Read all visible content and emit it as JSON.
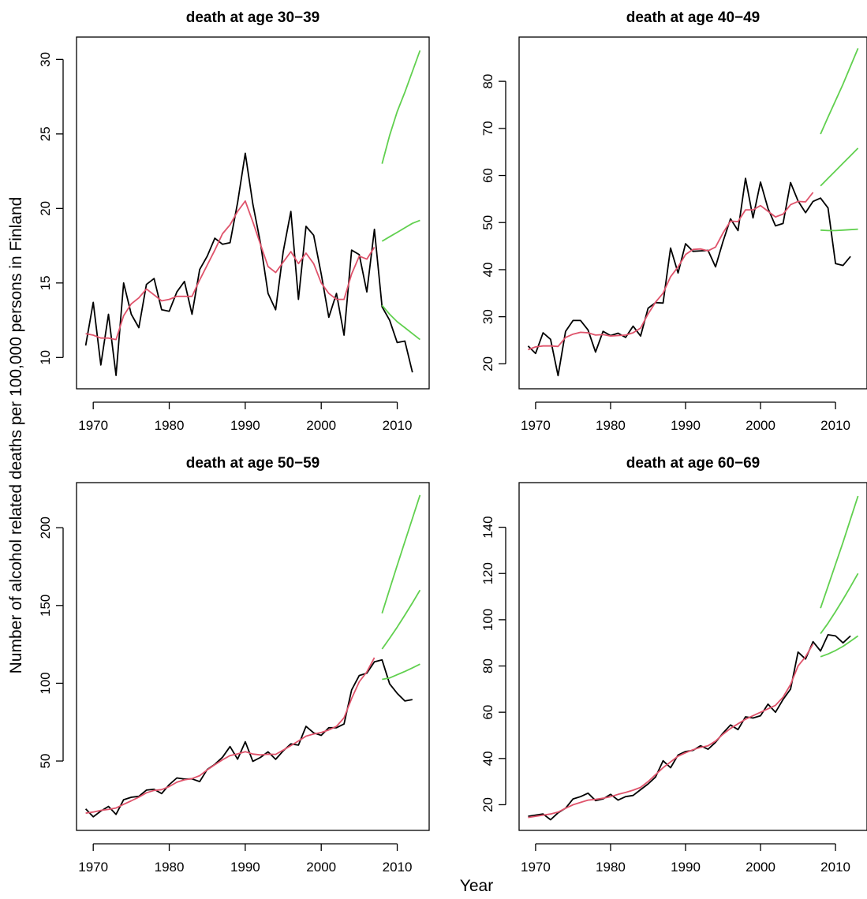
{
  "figure": {
    "ylabel": "Number of alcohol related deaths per 100,000 persons in Finland",
    "xlabel": "Year"
  },
  "colors": {
    "observed": "#000000",
    "smooth": "#DF536B",
    "forecast": "#61D04F"
  },
  "chart_data": [
    {
      "type": "line",
      "title": "death at age 30−39",
      "xlim": [
        1967.8,
        2014.2
      ],
      "ylim": [
        7.9,
        31.5
      ],
      "xticks": [
        1970,
        1980,
        1990,
        2000,
        2010
      ],
      "yticks": [
        10,
        15,
        20,
        25,
        30
      ],
      "series": [
        {
          "role": "observed",
          "x": [
            1969,
            1970,
            1971,
            1972,
            1973,
            1974,
            1975,
            1976,
            1977,
            1978,
            1979,
            1980,
            1981,
            1982,
            1983,
            1984,
            1985,
            1986,
            1987,
            1988,
            1989,
            1990,
            1991,
            1992,
            1993,
            1994,
            1995,
            1996,
            1997,
            1998,
            1999,
            2000,
            2001,
            2002,
            2003,
            2004,
            2005,
            2006,
            2007,
            2008,
            2009,
            2010,
            2011,
            2012
          ],
          "y": [
            10.8,
            13.7,
            9.5,
            12.9,
            8.8,
            15.0,
            12.9,
            12.0,
            14.9,
            15.3,
            13.2,
            13.1,
            14.4,
            15.1,
            12.9,
            15.9,
            16.8,
            18.0,
            17.6,
            17.7,
            20.4,
            23.7,
            20.3,
            17.7,
            14.3,
            13.2,
            17.1,
            19.8,
            13.9,
            18.8,
            18.2,
            15.6,
            12.7,
            14.3,
            11.5,
            17.2,
            16.9,
            14.4,
            18.6,
            13.4,
            12.5,
            11.0,
            11.1,
            9.0
          ]
        },
        {
          "role": "smooth",
          "x": [
            1969,
            1970,
            1971,
            1972,
            1973,
            1974,
            1975,
            1976,
            1977,
            1978,
            1979,
            1980,
            1981,
            1982,
            1983,
            1984,
            1985,
            1986,
            1987,
            1988,
            1989,
            1990,
            1991,
            1992,
            1993,
            1994,
            1995,
            1996,
            1997,
            1998,
            1999,
            2000,
            2001,
            2002,
            2003,
            2004,
            2005,
            2006,
            2007
          ],
          "y": [
            11.6,
            11.5,
            11.3,
            11.3,
            11.2,
            12.8,
            13.6,
            14.0,
            14.6,
            14.2,
            13.8,
            13.9,
            14.1,
            14.1,
            14.1,
            15.2,
            16.2,
            17.2,
            18.3,
            18.9,
            19.8,
            20.5,
            19.1,
            17.6,
            16.1,
            15.7,
            16.4,
            17.1,
            16.3,
            17.0,
            16.3,
            15.0,
            14.3,
            13.9,
            13.9,
            15.6,
            16.8,
            16.6,
            17.4
          ]
        },
        {
          "role": "forecast",
          "x": [
            2008,
            2009,
            2010,
            2011,
            2012,
            2013
          ],
          "y": [
            23.0,
            24.9,
            26.5,
            27.8,
            29.2,
            30.6
          ]
        },
        {
          "role": "forecast",
          "x": [
            2008,
            2009,
            2010,
            2011,
            2012,
            2013
          ],
          "y": [
            17.8,
            18.1,
            18.4,
            18.7,
            19.0,
            19.2
          ]
        },
        {
          "role": "forecast",
          "x": [
            2008,
            2009,
            2010,
            2011,
            2012,
            2013
          ],
          "y": [
            13.5,
            12.9,
            12.4,
            12.0,
            11.6,
            11.2
          ]
        }
      ]
    },
    {
      "type": "line",
      "title": "death at age 40−49",
      "xlim": [
        1967.8,
        2014.2
      ],
      "ylim": [
        14.7,
        89.4
      ],
      "xticks": [
        1970,
        1980,
        1990,
        2000,
        2010
      ],
      "yticks": [
        20,
        30,
        40,
        50,
        60,
        70,
        80
      ],
      "series": [
        {
          "role": "observed",
          "x": [
            1969,
            1970,
            1971,
            1972,
            1973,
            1974,
            1975,
            1976,
            1977,
            1978,
            1979,
            1980,
            1981,
            1982,
            1983,
            1984,
            1985,
            1986,
            1987,
            1988,
            1989,
            1990,
            1991,
            1992,
            1993,
            1994,
            1995,
            1996,
            1997,
            1998,
            1999,
            2000,
            2001,
            2002,
            2003,
            2004,
            2005,
            2006,
            2007,
            2008,
            2009,
            2010,
            2011,
            2012
          ],
          "y": [
            23.8,
            22.2,
            26.6,
            25.2,
            17.5,
            26.9,
            29.2,
            29.2,
            27.2,
            22.5,
            26.9,
            26.0,
            26.5,
            25.6,
            28.0,
            25.9,
            31.8,
            33.0,
            32.9,
            44.6,
            39.3,
            45.5,
            43.9,
            44.0,
            44.1,
            40.6,
            46.0,
            50.8,
            48.3,
            59.4,
            51.0,
            58.6,
            53.0,
            49.3,
            49.8,
            58.5,
            54.6,
            52.1,
            54.5,
            55.2,
            53.1,
            41.3,
            40.9,
            42.8
          ]
        },
        {
          "role": "smooth",
          "x": [
            1969,
            1970,
            1971,
            1972,
            1973,
            1974,
            1975,
            1976,
            1977,
            1978,
            1979,
            1980,
            1981,
            1982,
            1983,
            1984,
            1985,
            1986,
            1987,
            1988,
            1989,
            1990,
            1991,
            1992,
            1993,
            1994,
            1995,
            1996,
            1997,
            1998,
            1999,
            2000,
            2001,
            2002,
            2003,
            2004,
            2005,
            2006,
            2007
          ],
          "y": [
            23.0,
            23.6,
            23.8,
            23.8,
            23.7,
            25.6,
            26.3,
            26.7,
            26.6,
            26.1,
            26.2,
            25.9,
            26.0,
            26.1,
            26.6,
            27.6,
            30.6,
            33.1,
            35.0,
            38.5,
            40.6,
            43.2,
            44.3,
            44.4,
            44.0,
            44.8,
            47.8,
            50.3,
            50.2,
            52.7,
            52.7,
            53.6,
            52.4,
            51.2,
            51.8,
            53.8,
            54.5,
            54.4,
            56.4
          ]
        },
        {
          "role": "forecast",
          "x": [
            2008,
            2009,
            2010,
            2011,
            2012,
            2013
          ],
          "y": [
            68.8,
            72.4,
            75.9,
            79.4,
            83.2,
            87.0
          ]
        },
        {
          "role": "forecast",
          "x": [
            2008,
            2009,
            2010,
            2011,
            2012,
            2013
          ],
          "y": [
            57.8,
            59.4,
            61.0,
            62.6,
            64.2,
            65.8
          ]
        },
        {
          "role": "forecast",
          "x": [
            2008,
            2009,
            2010,
            2011,
            2012,
            2013
          ],
          "y": [
            48.4,
            48.3,
            48.3,
            48.4,
            48.5,
            48.6
          ]
        }
      ]
    },
    {
      "type": "line",
      "title": "death at age 50−59",
      "xlim": [
        1967.8,
        2014.2
      ],
      "ylim": [
        5.4,
        229.0
      ],
      "xticks": [
        1970,
        1980,
        1990,
        2000,
        2010
      ],
      "yticks": [
        50,
        100,
        150,
        200
      ],
      "series": [
        {
          "role": "observed",
          "x": [
            1969,
            1970,
            1971,
            1972,
            1973,
            1974,
            1975,
            1976,
            1977,
            1978,
            1979,
            1980,
            1981,
            1982,
            1983,
            1984,
            1985,
            1986,
            1987,
            1988,
            1989,
            1990,
            1991,
            1992,
            1993,
            1994,
            1995,
            1996,
            1997,
            1998,
            1999,
            2000,
            2001,
            2002,
            2003,
            2004,
            2005,
            2006,
            2007,
            2008,
            2009,
            2010,
            2011,
            2012
          ],
          "y": [
            19.2,
            14.1,
            17.8,
            20.8,
            15.7,
            25.1,
            26.7,
            27.3,
            31.3,
            31.8,
            29.1,
            34.8,
            39.1,
            38.4,
            38.5,
            36.8,
            44.6,
            47.9,
            52.4,
            59.3,
            51.2,
            62.4,
            49.8,
            52.3,
            55.9,
            51.1,
            56.5,
            61.0,
            60.2,
            72.3,
            68.1,
            66.5,
            71.4,
            71.4,
            73.8,
            95.7,
            105.0,
            106.5,
            113.8,
            115.0,
            99.6,
            93.5,
            88.6,
            89.5
          ]
        },
        {
          "role": "smooth",
          "x": [
            1969,
            1970,
            1971,
            1972,
            1973,
            1974,
            1975,
            1976,
            1977,
            1978,
            1979,
            1980,
            1981,
            1982,
            1983,
            1984,
            1985,
            1986,
            1987,
            1988,
            1989,
            1990,
            1991,
            1992,
            1993,
            1994,
            1995,
            1996,
            1997,
            1998,
            1999,
            2000,
            2001,
            2002,
            2003,
            2004,
            2005,
            2006,
            2007
          ],
          "y": [
            16.5,
            17.2,
            18.3,
            18.9,
            19.8,
            22.2,
            24.4,
            26.8,
            29.6,
            31.1,
            31.6,
            33.6,
            36.4,
            37.9,
            38.7,
            40.6,
            44.3,
            47.6,
            50.8,
            53.5,
            54.6,
            56.0,
            54.5,
            53.9,
            54.4,
            54.3,
            57.0,
            59.9,
            62.9,
            66.0,
            67.4,
            68.3,
            70.0,
            72.3,
            77.8,
            90.2,
            101.0,
            107.3,
            116.5
          ]
        },
        {
          "role": "forecast",
          "x": [
            2008,
            2009,
            2010,
            2011,
            2012,
            2013
          ],
          "y": [
            145.0,
            160.5,
            175.8,
            191.0,
            206.0,
            221.0
          ]
        },
        {
          "role": "forecast",
          "x": [
            2008,
            2009,
            2010,
            2011,
            2012,
            2013
          ],
          "y": [
            122.0,
            128.9,
            136.1,
            143.8,
            151.7,
            159.9
          ]
        },
        {
          "role": "forecast",
          "x": [
            2008,
            2009,
            2010,
            2011,
            2012,
            2013
          ],
          "y": [
            102.5,
            103.4,
            105.5,
            107.6,
            109.9,
            112.3
          ]
        }
      ]
    },
    {
      "type": "line",
      "title": "death at age 60−69",
      "xlim": [
        1967.8,
        2014.2
      ],
      "ylim": [
        8.9,
        159.3
      ],
      "xticks": [
        1970,
        1980,
        1990,
        2000,
        2010
      ],
      "yticks": [
        20,
        40,
        60,
        80,
        100,
        120,
        140
      ],
      "series": [
        {
          "role": "observed",
          "x": [
            1969,
            1970,
            1971,
            1972,
            1973,
            1974,
            1975,
            1976,
            1977,
            1978,
            1979,
            1980,
            1981,
            1982,
            1983,
            1984,
            1985,
            1986,
            1987,
            1988,
            1989,
            1990,
            1991,
            1992,
            1993,
            1994,
            1995,
            1996,
            1997,
            1998,
            1999,
            2000,
            2001,
            2002,
            2003,
            2004,
            2005,
            2006,
            2007,
            2008,
            2009,
            2010,
            2011,
            2012
          ],
          "y": [
            15.0,
            15.5,
            16.0,
            13.5,
            16.5,
            18.5,
            22.5,
            23.5,
            25.0,
            21.8,
            22.5,
            24.5,
            22.0,
            23.5,
            24.0,
            26.5,
            29.0,
            32.0,
            39.0,
            36.0,
            41.5,
            43.0,
            43.5,
            45.5,
            44.0,
            47.0,
            51.0,
            54.5,
            52.5,
            58.0,
            57.5,
            58.5,
            63.5,
            60.0,
            65.5,
            70.0,
            86.0,
            83.0,
            90.5,
            86.5,
            93.5,
            93.0,
            90.0,
            93.0
          ]
        },
        {
          "role": "smooth",
          "x": [
            1969,
            1970,
            1971,
            1972,
            1973,
            1974,
            1975,
            1976,
            1977,
            1978,
            1979,
            1980,
            1981,
            1982,
            1983,
            1984,
            1985,
            1986,
            1987,
            1988,
            1989,
            1990,
            1991,
            1992,
            1993,
            1994,
            1995,
            1996,
            1997,
            1998,
            1999,
            2000,
            2001,
            2002,
            2003,
            2004,
            2005,
            2006,
            2007
          ],
          "y": [
            14.5,
            15.0,
            15.5,
            16.0,
            16.8,
            18.5,
            20.0,
            21.0,
            22.0,
            22.3,
            22.8,
            23.5,
            24.5,
            25.3,
            26.3,
            27.5,
            30.0,
            33.0,
            36.0,
            38.5,
            41.0,
            42.5,
            43.8,
            44.8,
            45.5,
            47.5,
            50.5,
            53.0,
            55.0,
            57.0,
            58.5,
            60.0,
            61.5,
            63.0,
            66.5,
            72.0,
            80.0,
            84.0,
            89.5
          ]
        },
        {
          "role": "forecast",
          "x": [
            2008,
            2009,
            2010,
            2011,
            2012,
            2013
          ],
          "y": [
            105.0,
            114.5,
            124.0,
            133.5,
            143.5,
            153.5
          ]
        },
        {
          "role": "forecast",
          "x": [
            2008,
            2009,
            2010,
            2011,
            2012,
            2013
          ],
          "y": [
            94.0,
            98.5,
            103.5,
            108.8,
            114.3,
            120.0
          ]
        },
        {
          "role": "forecast",
          "x": [
            2008,
            2009,
            2010,
            2011,
            2012,
            2013
          ],
          "y": [
            84.0,
            85.2,
            86.7,
            88.5,
            90.7,
            93.0
          ]
        }
      ]
    }
  ]
}
